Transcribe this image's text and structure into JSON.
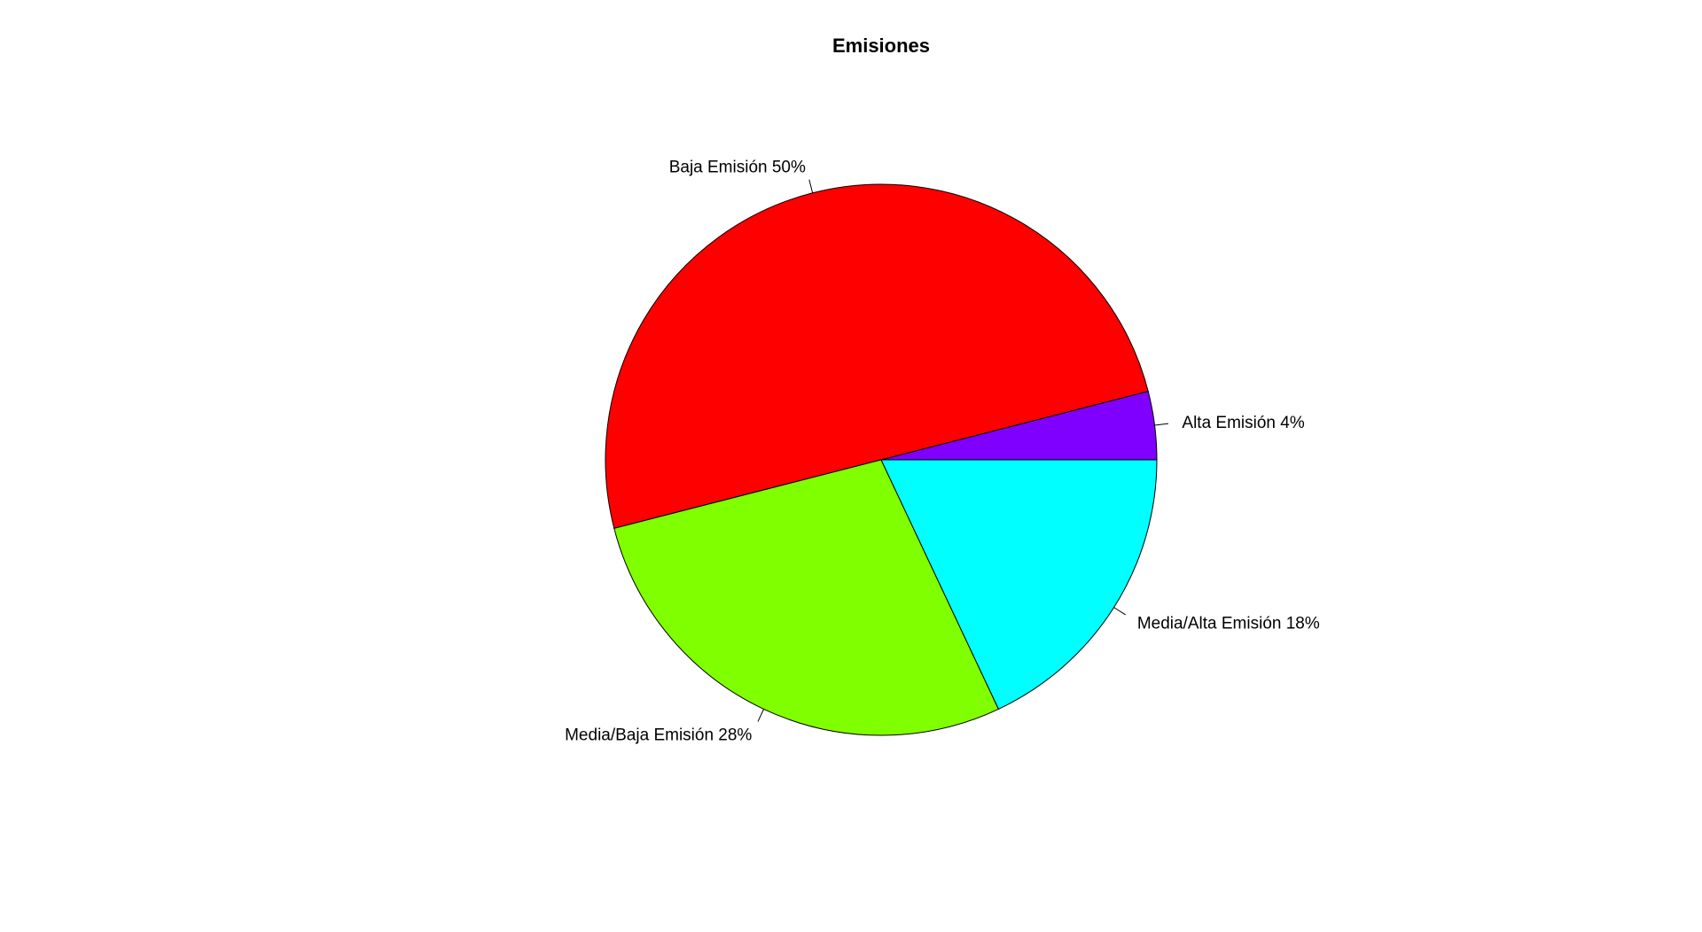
{
  "chart_data": {
    "type": "pie",
    "title": "Emisiones",
    "slices": [
      {
        "category": "Alta Emisión",
        "value": 4,
        "label": "Alta Emisión 4%",
        "color": "#8000FF"
      },
      {
        "category": "Baja Emisión",
        "value": 50,
        "label": "Baja Emisión 50%",
        "color": "#FF0000"
      },
      {
        "category": "Media/Baja Emisión",
        "value": 28,
        "label": "Media/Baja Emisión 28%",
        "color": "#80FF00"
      },
      {
        "category": "Media/Alta Emisión",
        "value": 18,
        "label": "Media/Alta Emisión 18%",
        "color": "#00FFFF"
      }
    ],
    "start_angle": "3 o'clock",
    "direction": "counterclockwise",
    "legend": "none"
  }
}
